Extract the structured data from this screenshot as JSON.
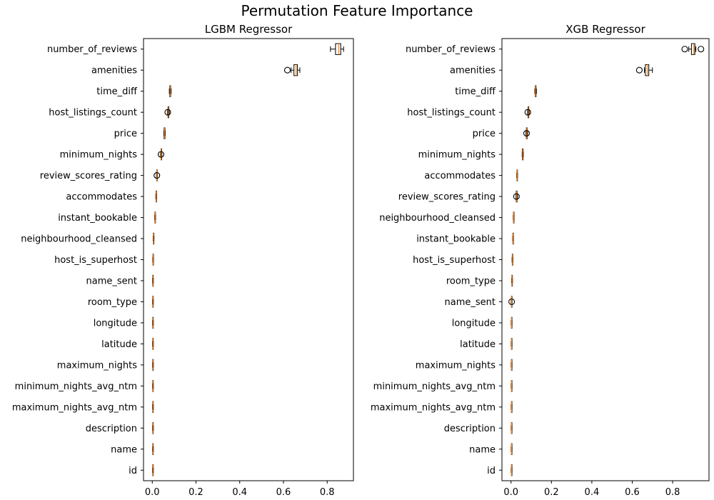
{
  "suptitle": "Permutation Feature Importance",
  "chart_data": [
    {
      "type": "boxplot",
      "orientation": "horizontal",
      "title": "LGBM Regressor",
      "xlim": [
        -0.04,
        0.92
      ],
      "xticks": [
        0.0,
        0.2,
        0.4,
        0.6,
        0.8
      ],
      "xtick_labels": [
        "0.0",
        "0.2",
        "0.4",
        "0.6",
        "0.8"
      ],
      "features": [
        {
          "name": "number_of_reviews",
          "whislo": 0.815,
          "q1": 0.838,
          "med": 0.853,
          "q3": 0.862,
          "whishi": 0.875,
          "fliers": []
        },
        {
          "name": "amenities",
          "whislo": 0.635,
          "q1": 0.648,
          "med": 0.658,
          "q3": 0.664,
          "whishi": 0.675,
          "fliers": [
            0.618
          ]
        },
        {
          "name": "time_diff",
          "whislo": 0.078,
          "q1": 0.08,
          "med": 0.082,
          "q3": 0.084,
          "whishi": 0.086,
          "fliers": []
        },
        {
          "name": "host_listings_count",
          "whislo": 0.07,
          "q1": 0.072,
          "med": 0.074,
          "q3": 0.076,
          "whishi": 0.078,
          "fliers": [
            0.071
          ]
        },
        {
          "name": "price",
          "whislo": 0.053,
          "q1": 0.054,
          "med": 0.056,
          "q3": 0.058,
          "whishi": 0.059,
          "fliers": []
        },
        {
          "name": "minimum_nights",
          "whislo": 0.038,
          "q1": 0.04,
          "med": 0.041,
          "q3": 0.043,
          "whishi": 0.044,
          "fliers": [
            0.04
          ]
        },
        {
          "name": "review_scores_rating",
          "whislo": 0.019,
          "q1": 0.02,
          "med": 0.021,
          "q3": 0.022,
          "whishi": 0.023,
          "fliers": [
            0.021
          ]
        },
        {
          "name": "accommodates",
          "whislo": 0.016,
          "q1": 0.017,
          "med": 0.018,
          "q3": 0.019,
          "whishi": 0.02,
          "fliers": []
        },
        {
          "name": "instant_bookable",
          "whislo": 0.011,
          "q1": 0.012,
          "med": 0.013,
          "q3": 0.014,
          "whishi": 0.015,
          "fliers": []
        },
        {
          "name": "neighbourhood_cleansed",
          "whislo": 0.004,
          "q1": 0.005,
          "med": 0.006,
          "q3": 0.007,
          "whishi": 0.008,
          "fliers": []
        },
        {
          "name": "host_is_superhost",
          "whislo": 0.002,
          "q1": 0.003,
          "med": 0.004,
          "q3": 0.005,
          "whishi": 0.006,
          "fliers": []
        },
        {
          "name": "name_sent",
          "whislo": 0.001,
          "q1": 0.002,
          "med": 0.003,
          "q3": 0.004,
          "whishi": 0.005,
          "fliers": []
        },
        {
          "name": "room_type",
          "whislo": 0.001,
          "q1": 0.002,
          "med": 0.003,
          "q3": 0.004,
          "whishi": 0.005,
          "fliers": []
        },
        {
          "name": "longitude",
          "whislo": 0.001,
          "q1": 0.002,
          "med": 0.003,
          "q3": 0.004,
          "whishi": 0.005,
          "fliers": []
        },
        {
          "name": "latitude",
          "whislo": 0.001,
          "q1": 0.002,
          "med": 0.003,
          "q3": 0.004,
          "whishi": 0.005,
          "fliers": []
        },
        {
          "name": "maximum_nights",
          "whislo": 0.001,
          "q1": 0.002,
          "med": 0.003,
          "q3": 0.004,
          "whishi": 0.005,
          "fliers": []
        },
        {
          "name": "minimum_nights_avg_ntm",
          "whislo": 0.001,
          "q1": 0.002,
          "med": 0.003,
          "q3": 0.004,
          "whishi": 0.005,
          "fliers": []
        },
        {
          "name": "maximum_nights_avg_ntm",
          "whislo": 0.001,
          "q1": 0.002,
          "med": 0.003,
          "q3": 0.004,
          "whishi": 0.005,
          "fliers": []
        },
        {
          "name": "description",
          "whislo": 0.001,
          "q1": 0.002,
          "med": 0.003,
          "q3": 0.004,
          "whishi": 0.005,
          "fliers": []
        },
        {
          "name": "name",
          "whislo": 0.001,
          "q1": 0.002,
          "med": 0.003,
          "q3": 0.004,
          "whishi": 0.005,
          "fliers": []
        },
        {
          "name": "id",
          "whislo": 0.001,
          "q1": 0.002,
          "med": 0.003,
          "q3": 0.004,
          "whishi": 0.005,
          "fliers": []
        }
      ]
    },
    {
      "type": "boxplot",
      "orientation": "horizontal",
      "title": "XGB Regressor",
      "xlim": [
        -0.045,
        0.98
      ],
      "xticks": [
        0.0,
        0.2,
        0.4,
        0.6,
        0.8
      ],
      "xtick_labels": [
        "0.0",
        "0.2",
        "0.4",
        "0.6",
        "0.8"
      ],
      "features": [
        {
          "name": "number_of_reviews",
          "whislo": 0.88,
          "q1": 0.893,
          "med": 0.905,
          "q3": 0.91,
          "whishi": 0.915,
          "fliers": [
            0.86,
            0.94
          ]
        },
        {
          "name": "amenities",
          "whislo": 0.66,
          "q1": 0.665,
          "med": 0.675,
          "q3": 0.682,
          "whishi": 0.7,
          "fliers": [
            0.635
          ]
        },
        {
          "name": "time_diff",
          "whislo": 0.118,
          "q1": 0.12,
          "med": 0.122,
          "q3": 0.124,
          "whishi": 0.126,
          "fliers": []
        },
        {
          "name": "host_listings_count",
          "whislo": 0.082,
          "q1": 0.084,
          "med": 0.086,
          "q3": 0.088,
          "whishi": 0.09,
          "fliers": [
            0.083
          ]
        },
        {
          "name": "price",
          "whislo": 0.074,
          "q1": 0.076,
          "med": 0.078,
          "q3": 0.08,
          "whishi": 0.082,
          "fliers": [
            0.077
          ]
        },
        {
          "name": "minimum_nights",
          "whislo": 0.055,
          "q1": 0.056,
          "med": 0.058,
          "q3": 0.06,
          "whishi": 0.061,
          "fliers": []
        },
        {
          "name": "accommodates",
          "whislo": 0.028,
          "q1": 0.029,
          "med": 0.03,
          "q3": 0.031,
          "whishi": 0.032,
          "fliers": []
        },
        {
          "name": "review_scores_rating",
          "whislo": 0.025,
          "q1": 0.026,
          "med": 0.028,
          "q3": 0.03,
          "whishi": 0.032,
          "fliers": [
            0.027
          ]
        },
        {
          "name": "neighbourhood_cleansed",
          "whislo": 0.011,
          "q1": 0.012,
          "med": 0.013,
          "q3": 0.014,
          "whishi": 0.015,
          "fliers": []
        },
        {
          "name": "instant_bookable",
          "whislo": 0.008,
          "q1": 0.009,
          "med": 0.01,
          "q3": 0.011,
          "whishi": 0.012,
          "fliers": []
        },
        {
          "name": "host_is_superhost",
          "whislo": 0.005,
          "q1": 0.006,
          "med": 0.007,
          "q3": 0.008,
          "whishi": 0.009,
          "fliers": []
        },
        {
          "name": "room_type",
          "whislo": 0.003,
          "q1": 0.004,
          "med": 0.005,
          "q3": 0.006,
          "whishi": 0.007,
          "fliers": []
        },
        {
          "name": "name_sent",
          "whislo": 0.001,
          "q1": 0.002,
          "med": 0.003,
          "q3": 0.004,
          "whishi": 0.005,
          "fliers": [
            0.003
          ]
        },
        {
          "name": "longitude",
          "whislo": 0.001,
          "q1": 0.002,
          "med": 0.003,
          "q3": 0.004,
          "whishi": 0.005,
          "fliers": []
        },
        {
          "name": "latitude",
          "whislo": 0.001,
          "q1": 0.002,
          "med": 0.003,
          "q3": 0.004,
          "whishi": 0.005,
          "fliers": []
        },
        {
          "name": "maximum_nights",
          "whislo": 0.001,
          "q1": 0.002,
          "med": 0.003,
          "q3": 0.004,
          "whishi": 0.005,
          "fliers": []
        },
        {
          "name": "minimum_nights_avg_ntm",
          "whislo": 0.001,
          "q1": 0.002,
          "med": 0.003,
          "q3": 0.004,
          "whishi": 0.005,
          "fliers": []
        },
        {
          "name": "maximum_nights_avg_ntm",
          "whislo": 0.001,
          "q1": 0.002,
          "med": 0.003,
          "q3": 0.004,
          "whishi": 0.005,
          "fliers": []
        },
        {
          "name": "description",
          "whislo": 0.001,
          "q1": 0.002,
          "med": 0.003,
          "q3": 0.004,
          "whishi": 0.005,
          "fliers": []
        },
        {
          "name": "name",
          "whislo": 0.001,
          "q1": 0.002,
          "med": 0.003,
          "q3": 0.004,
          "whishi": 0.005,
          "fliers": []
        },
        {
          "name": "id",
          "whislo": 0.001,
          "q1": 0.002,
          "med": 0.003,
          "q3": 0.004,
          "whishi": 0.005,
          "fliers": []
        }
      ]
    }
  ],
  "style": {
    "median_color": "#ff7f0e",
    "box_color": "#000000",
    "flier_color": "#000000"
  }
}
